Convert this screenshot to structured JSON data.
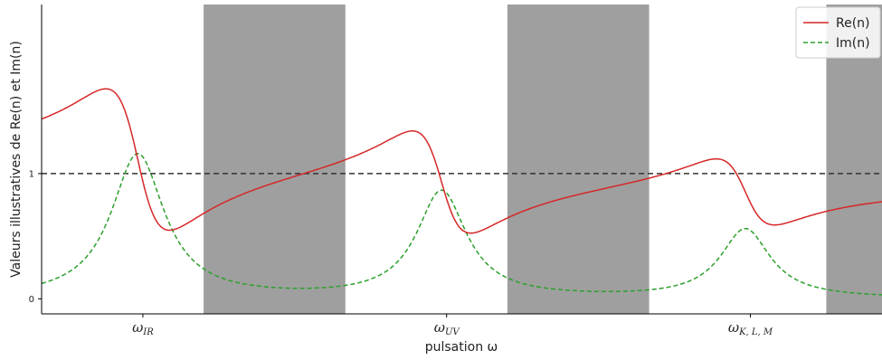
{
  "chart_data": {
    "type": "line",
    "xlabel": "pulsation ω",
    "ylabel": "Valeurs illustratives de Re(n) et Im(n)",
    "x_ticks": [
      {
        "x": 1.0,
        "main": "ω",
        "sub": "IR"
      },
      {
        "x": 4.0,
        "main": "ω",
        "sub": "UV"
      },
      {
        "x": 7.0,
        "main": "ω",
        "sub": "K, L, M"
      }
    ],
    "y_ticks": [
      {
        "y": 0,
        "label": "0"
      },
      {
        "y": 1,
        "label": "1"
      }
    ],
    "xlim": [
      0,
      8.3
    ],
    "ylim": [
      -0.12,
      2.35
    ],
    "shaded_bands": [
      [
        1.6,
        3.0
      ],
      [
        4.6,
        6.0
      ],
      [
        7.75,
        8.3
      ]
    ],
    "reference_line": {
      "y": 1,
      "style": "dashed",
      "color": "#333333"
    },
    "resonances": [
      {
        "omega": 0.95,
        "strength": 1.15,
        "width": 0.32
      },
      {
        "omega": 3.95,
        "strength": 0.85,
        "width": 0.3
      },
      {
        "omega": 6.95,
        "strength": 0.55,
        "width": 0.3
      }
    ],
    "series": [
      {
        "name": "Re(n)",
        "color": "#d62728",
        "style": "solid"
      },
      {
        "name": "Im(n)",
        "color": "#2ca02c",
        "style": "dashed"
      }
    ],
    "legend_position": "top-right",
    "colors": {
      "band": "#9f9f9f",
      "background": "#ffffff"
    }
  }
}
